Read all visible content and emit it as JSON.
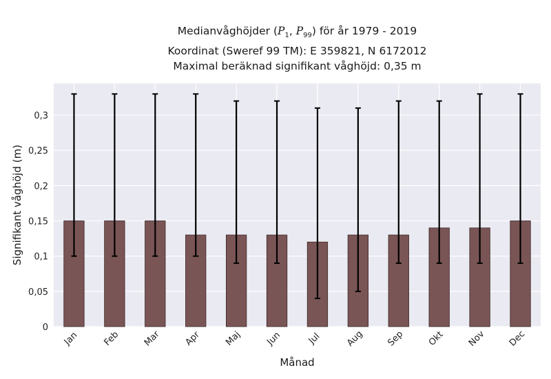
{
  "title": {
    "line1_prefix": "Medianvåghöjder (",
    "p_symbol": "P",
    "p1_sub": "1",
    "p_separator": ", ",
    "p99_sub": "99",
    "line1_suffix": ") för år 1979 - 2019",
    "line2": "Koordinat (Sweref 99 TM): E 359821, N 6172012",
    "line3": "Maximal beräknad signifikant våghöjd: 0,35 m"
  },
  "chart_data": {
    "type": "bar",
    "title": "Medianvåghöjder (P1, P99) för år 1979 - 2019",
    "xlabel": "Månad",
    "ylabel": "Signifikant våghöjd (m)",
    "categories": [
      "Jan",
      "Feb",
      "Mar",
      "Apr",
      "Maj",
      "Jun",
      "Jul",
      "Aug",
      "Sep",
      "Okt",
      "Nov",
      "Dec"
    ],
    "series": [
      {
        "values": [
          0.15,
          0.15,
          0.15,
          0.13,
          0.13,
          0.13,
          0.12,
          0.13,
          0.13,
          0.14,
          0.14,
          0.15
        ],
        "error_low": [
          0.1,
          0.1,
          0.1,
          0.1,
          0.09,
          0.09,
          0.04,
          0.05,
          0.09,
          0.09,
          0.09,
          0.09
        ],
        "error_high": [
          0.33,
          0.33,
          0.33,
          0.33,
          0.32,
          0.32,
          0.31,
          0.31,
          0.32,
          0.32,
          0.33,
          0.33
        ]
      }
    ],
    "yticks": [
      0,
      0.05,
      0.1,
      0.15,
      0.2,
      0.25,
      0.3
    ],
    "ytick_labels": [
      "0",
      "0,05",
      "0,1",
      "0,15",
      "0,2",
      "0,25",
      "0,3"
    ],
    "ylim": [
      0,
      0.345
    ],
    "grid": true,
    "colors": {
      "bar": "#7a5555",
      "bar_edge": "#3a2626",
      "error": "#000000",
      "plot_bg": "#eaeaf2",
      "grid": "#ffffff"
    }
  }
}
